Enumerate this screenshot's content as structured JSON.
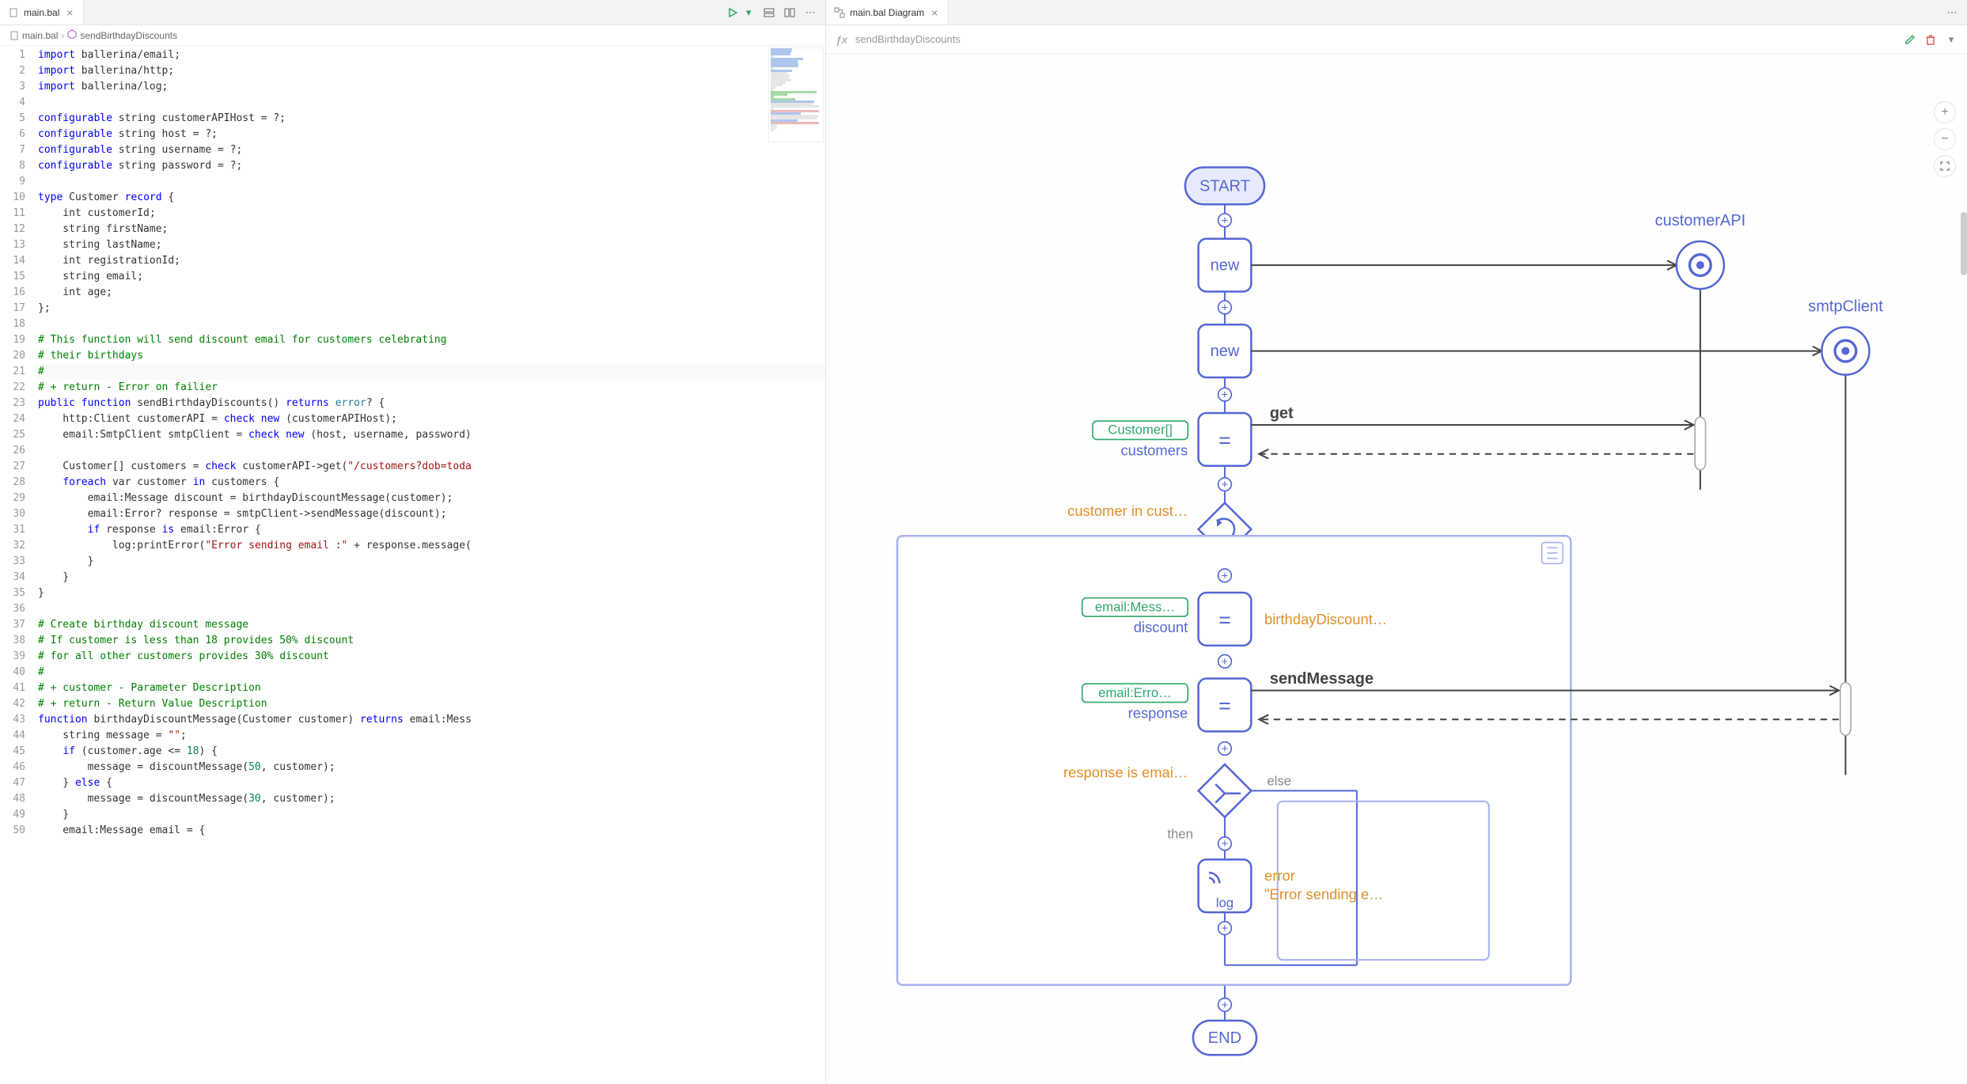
{
  "tabs": {
    "left": {
      "label": "main.bal"
    },
    "right": {
      "label": "main.bal Diagram"
    }
  },
  "breadcrumb": {
    "file": "main.bal",
    "symbol": "sendBirthdayDiscounts"
  },
  "fx": {
    "name": "sendBirthdayDiscounts"
  },
  "code": {
    "lines": [
      {
        "n": 1,
        "seg": [
          {
            "t": "import ",
            "c": "kw"
          },
          {
            "t": "ballerina/email;"
          }
        ]
      },
      {
        "n": 2,
        "seg": [
          {
            "t": "import ",
            "c": "kw"
          },
          {
            "t": "ballerina/http;"
          }
        ]
      },
      {
        "n": 3,
        "seg": [
          {
            "t": "import ",
            "c": "kw"
          },
          {
            "t": "ballerina/log;"
          }
        ]
      },
      {
        "n": 4,
        "seg": []
      },
      {
        "n": 5,
        "seg": [
          {
            "t": "configurable ",
            "c": "kw"
          },
          {
            "t": "string customerAPIHost = ?;"
          }
        ]
      },
      {
        "n": 6,
        "seg": [
          {
            "t": "configurable ",
            "c": "kw"
          },
          {
            "t": "string host = ?;"
          }
        ]
      },
      {
        "n": 7,
        "seg": [
          {
            "t": "configurable ",
            "c": "kw"
          },
          {
            "t": "string username = ?;"
          }
        ]
      },
      {
        "n": 8,
        "seg": [
          {
            "t": "configurable ",
            "c": "kw"
          },
          {
            "t": "string password = ?;"
          }
        ]
      },
      {
        "n": 9,
        "seg": []
      },
      {
        "n": 10,
        "seg": [
          {
            "t": "type ",
            "c": "kw"
          },
          {
            "t": "Customer "
          },
          {
            "t": "record ",
            "c": "kw"
          },
          {
            "t": "{"
          }
        ]
      },
      {
        "n": 11,
        "seg": [
          {
            "t": "    int customerId;"
          }
        ]
      },
      {
        "n": 12,
        "seg": [
          {
            "t": "    string firstName;"
          }
        ]
      },
      {
        "n": 13,
        "seg": [
          {
            "t": "    string lastName;"
          }
        ]
      },
      {
        "n": 14,
        "seg": [
          {
            "t": "    int registrationId;"
          }
        ]
      },
      {
        "n": 15,
        "seg": [
          {
            "t": "    string email;"
          }
        ]
      },
      {
        "n": 16,
        "seg": [
          {
            "t": "    int age;"
          }
        ]
      },
      {
        "n": 17,
        "seg": [
          {
            "t": "};"
          }
        ]
      },
      {
        "n": 18,
        "seg": []
      },
      {
        "n": 19,
        "seg": [
          {
            "t": "# This function will send discount email for customers celebrating",
            "c": "cmt"
          }
        ]
      },
      {
        "n": 20,
        "seg": [
          {
            "t": "# their birthdays",
            "c": "cmt"
          }
        ]
      },
      {
        "n": 21,
        "hl": true,
        "seg": [
          {
            "t": "#",
            "c": "cmt"
          }
        ]
      },
      {
        "n": 22,
        "seg": [
          {
            "t": "# + return - Error on failier",
            "c": "cmt"
          }
        ]
      },
      {
        "n": 23,
        "seg": [
          {
            "t": "public function ",
            "c": "kw"
          },
          {
            "t": "sendBirthdayDiscounts() "
          },
          {
            "t": "returns ",
            "c": "kw"
          },
          {
            "t": "error",
            "c": "typ"
          },
          {
            "t": "? {"
          }
        ]
      },
      {
        "n": 24,
        "seg": [
          {
            "t": "    http:Client customerAPI = "
          },
          {
            "t": "check new ",
            "c": "kw"
          },
          {
            "t": "(customerAPIHost);"
          }
        ]
      },
      {
        "n": 25,
        "seg": [
          {
            "t": "    email:SmtpClient smtpClient = "
          },
          {
            "t": "check new ",
            "c": "kw"
          },
          {
            "t": "(host, username, password)"
          }
        ]
      },
      {
        "n": 26,
        "seg": []
      },
      {
        "n": 27,
        "seg": [
          {
            "t": "    Customer[] customers = "
          },
          {
            "t": "check ",
            "c": "kw"
          },
          {
            "t": "customerAPI->get("
          },
          {
            "t": "\"/customers?dob=toda",
            "c": "str"
          }
        ]
      },
      {
        "n": 28,
        "seg": [
          {
            "t": "    "
          },
          {
            "t": "foreach ",
            "c": "kw"
          },
          {
            "t": "var customer "
          },
          {
            "t": "in ",
            "c": "kw"
          },
          {
            "t": "customers {"
          }
        ]
      },
      {
        "n": 29,
        "seg": [
          {
            "t": "        email:Message discount = birthdayDiscountMessage(customer);"
          }
        ]
      },
      {
        "n": 30,
        "seg": [
          {
            "t": "        email:Error? response = smtpClient->sendMessage(discount);"
          }
        ]
      },
      {
        "n": 31,
        "seg": [
          {
            "t": "        "
          },
          {
            "t": "if ",
            "c": "kw"
          },
          {
            "t": "response "
          },
          {
            "t": "is ",
            "c": "kw"
          },
          {
            "t": "email:Error {"
          }
        ]
      },
      {
        "n": 32,
        "seg": [
          {
            "t": "            log:printError("
          },
          {
            "t": "\"Error sending email :\"",
            "c": "str"
          },
          {
            "t": " + response.message("
          }
        ]
      },
      {
        "n": 33,
        "seg": [
          {
            "t": "        }"
          }
        ]
      },
      {
        "n": 34,
        "seg": [
          {
            "t": "    }"
          }
        ]
      },
      {
        "n": 35,
        "seg": [
          {
            "t": "}"
          }
        ]
      },
      {
        "n": 36,
        "seg": []
      },
      {
        "n": 37,
        "seg": [
          {
            "t": "# Create birthday discount message",
            "c": "cmt"
          }
        ]
      },
      {
        "n": 38,
        "seg": [
          {
            "t": "# If customer is less than 18 provides 50% discount",
            "c": "cmt"
          }
        ]
      },
      {
        "n": 39,
        "seg": [
          {
            "t": "# for all other customers provides 30% discount",
            "c": "cmt"
          }
        ]
      },
      {
        "n": 40,
        "seg": [
          {
            "t": "#",
            "c": "cmt"
          }
        ]
      },
      {
        "n": 41,
        "seg": [
          {
            "t": "# + customer - Parameter Description",
            "c": "cmt"
          }
        ]
      },
      {
        "n": 42,
        "seg": [
          {
            "t": "# + return - Return Value Description",
            "c": "cmt"
          }
        ]
      },
      {
        "n": 43,
        "seg": [
          {
            "t": "function ",
            "c": "kw"
          },
          {
            "t": "birthdayDiscountMessage(Customer customer) "
          },
          {
            "t": "returns ",
            "c": "kw"
          },
          {
            "t": "email:Mess"
          }
        ]
      },
      {
        "n": 44,
        "seg": [
          {
            "t": "    string message = "
          },
          {
            "t": "\"\"",
            "c": "str"
          },
          {
            "t": ";"
          }
        ]
      },
      {
        "n": 45,
        "seg": [
          {
            "t": "    "
          },
          {
            "t": "if ",
            "c": "kw"
          },
          {
            "t": "(customer.age <= "
          },
          {
            "t": "18",
            "c": "num"
          },
          {
            "t": ") {"
          }
        ]
      },
      {
        "n": 46,
        "seg": [
          {
            "t": "        message = discountMessage("
          },
          {
            "t": "50",
            "c": "num"
          },
          {
            "t": ", customer);"
          }
        ]
      },
      {
        "n": 47,
        "seg": [
          {
            "t": "    } "
          },
          {
            "t": "else ",
            "c": "kw"
          },
          {
            "t": "{"
          }
        ]
      },
      {
        "n": 48,
        "seg": [
          {
            "t": "        message = discountMessage("
          },
          {
            "t": "30",
            "c": "num"
          },
          {
            "t": ", customer);"
          }
        ]
      },
      {
        "n": 49,
        "seg": [
          {
            "t": "    }"
          }
        ]
      },
      {
        "n": 50,
        "seg": [
          {
            "t": "    email:Message email = {"
          }
        ]
      }
    ]
  },
  "diagram": {
    "start": "START",
    "end": "END",
    "new": "new",
    "eq": "=",
    "get": "get",
    "sendMessage": "sendMessage",
    "customerAPI": "customerAPI",
    "smtpClient": "smtpClient",
    "customersType": "Customer[]",
    "customersVar": "customers",
    "foreach": "customer in cust…",
    "emailMessType": "email:Mess…",
    "discountVar": "discount",
    "bdayCall": "birthdayDiscount…",
    "emailErrType": "email:Erro…",
    "responseVar": "response",
    "ifCond": "response is emai…",
    "then": "then",
    "else": "else",
    "log": "log",
    "error": "error",
    "errMsg": "\"Error sending e…",
    "colors": {
      "primary": "#5567d5",
      "accent": "#e28f2a",
      "green": "#2fa86b"
    }
  }
}
